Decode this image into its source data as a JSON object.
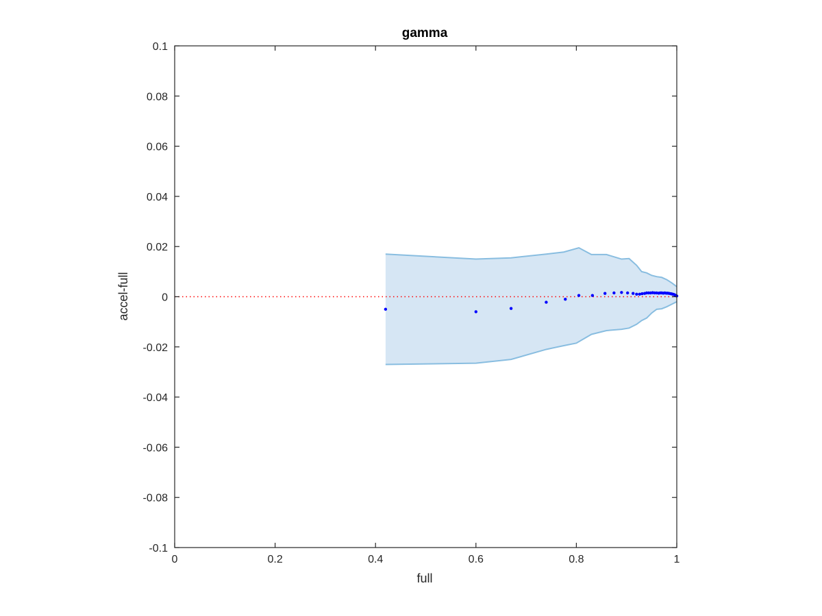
{
  "chart_data": {
    "type": "scatter",
    "title": "gamma",
    "xlabel": "full",
    "ylabel": "accel-full",
    "xlim": [
      0,
      1
    ],
    "ylim": [
      -0.1,
      0.1
    ],
    "grid": false,
    "box": true,
    "x_ticks": [
      0,
      0.2,
      0.4,
      0.6,
      0.8,
      1
    ],
    "x_tick_labels": [
      "0",
      "0.2",
      "0.4",
      "0.6",
      "0.8",
      "1"
    ],
    "y_ticks": [
      -0.1,
      -0.08,
      -0.06,
      -0.04,
      -0.02,
      0,
      0.02,
      0.04,
      0.06,
      0.08,
      0.1
    ],
    "y_tick_labels": [
      "-0.1",
      "-0.08",
      "-0.06",
      "-0.04",
      "-0.02",
      "0",
      "0.02",
      "0.04",
      "0.06",
      "0.08",
      "0.1"
    ],
    "reference_line": {
      "y": 0,
      "color": "#ff0000",
      "style": "dotted"
    },
    "band": {
      "fill_color": "#d6e6f4",
      "edge_color": "#88bde0",
      "upper": [
        [
          0.42,
          0.017
        ],
        [
          0.6,
          0.015
        ],
        [
          0.67,
          0.0155
        ],
        [
          0.74,
          0.017
        ],
        [
          0.775,
          0.0178
        ],
        [
          0.805,
          0.0195
        ],
        [
          0.83,
          0.0168
        ],
        [
          0.86,
          0.0168
        ],
        [
          0.89,
          0.015
        ],
        [
          0.905,
          0.0152
        ],
        [
          0.92,
          0.0125
        ],
        [
          0.93,
          0.01
        ],
        [
          0.94,
          0.0095
        ],
        [
          0.95,
          0.0085
        ],
        [
          0.96,
          0.008
        ],
        [
          0.97,
          0.0077
        ],
        [
          0.98,
          0.0068
        ],
        [
          0.99,
          0.0055
        ],
        [
          1.0,
          0.004
        ]
      ],
      "lower": [
        [
          0.42,
          -0.027
        ],
        [
          0.6,
          -0.0265
        ],
        [
          0.67,
          -0.025
        ],
        [
          0.74,
          -0.021
        ],
        [
          0.775,
          -0.0195
        ],
        [
          0.8,
          -0.0185
        ],
        [
          0.83,
          -0.015
        ],
        [
          0.86,
          -0.0135
        ],
        [
          0.89,
          -0.013
        ],
        [
          0.905,
          -0.0125
        ],
        [
          0.92,
          -0.011
        ],
        [
          0.93,
          -0.0095
        ],
        [
          0.94,
          -0.0085
        ],
        [
          0.95,
          -0.0065
        ],
        [
          0.96,
          -0.005
        ],
        [
          0.97,
          -0.0048
        ],
        [
          0.98,
          -0.004
        ],
        [
          0.99,
          -0.003
        ],
        [
          1.0,
          -0.002
        ]
      ]
    },
    "series": [
      {
        "color": "#0000ff",
        "x": [
          0.42,
          0.6,
          0.67,
          0.74,
          0.778,
          0.805,
          0.832,
          0.857,
          0.875,
          0.89,
          0.902,
          0.913,
          0.92,
          0.926,
          0.931,
          0.936,
          0.94,
          0.944,
          0.948,
          0.952,
          0.956,
          0.96,
          0.964,
          0.967,
          0.97,
          0.973,
          0.976,
          0.979,
          0.982,
          0.985,
          0.988,
          0.99,
          0.992,
          0.994,
          0.996,
          0.998,
          0.999,
          1.0
        ],
        "y": [
          -0.005,
          -0.006,
          -0.0047,
          -0.0022,
          -0.001,
          0.0005,
          0.0005,
          0.0013,
          0.0015,
          0.0017,
          0.0015,
          0.0013,
          0.001,
          0.001,
          0.0012,
          0.0013,
          0.0015,
          0.0015,
          0.0015,
          0.0016,
          0.0015,
          0.0015,
          0.0014,
          0.0015,
          0.0015,
          0.0014,
          0.0015,
          0.0014,
          0.0014,
          0.0013,
          0.0012,
          0.0011,
          0.001,
          0.0009,
          0.0007,
          0.0005,
          0.0004,
          0.0003
        ]
      }
    ]
  }
}
